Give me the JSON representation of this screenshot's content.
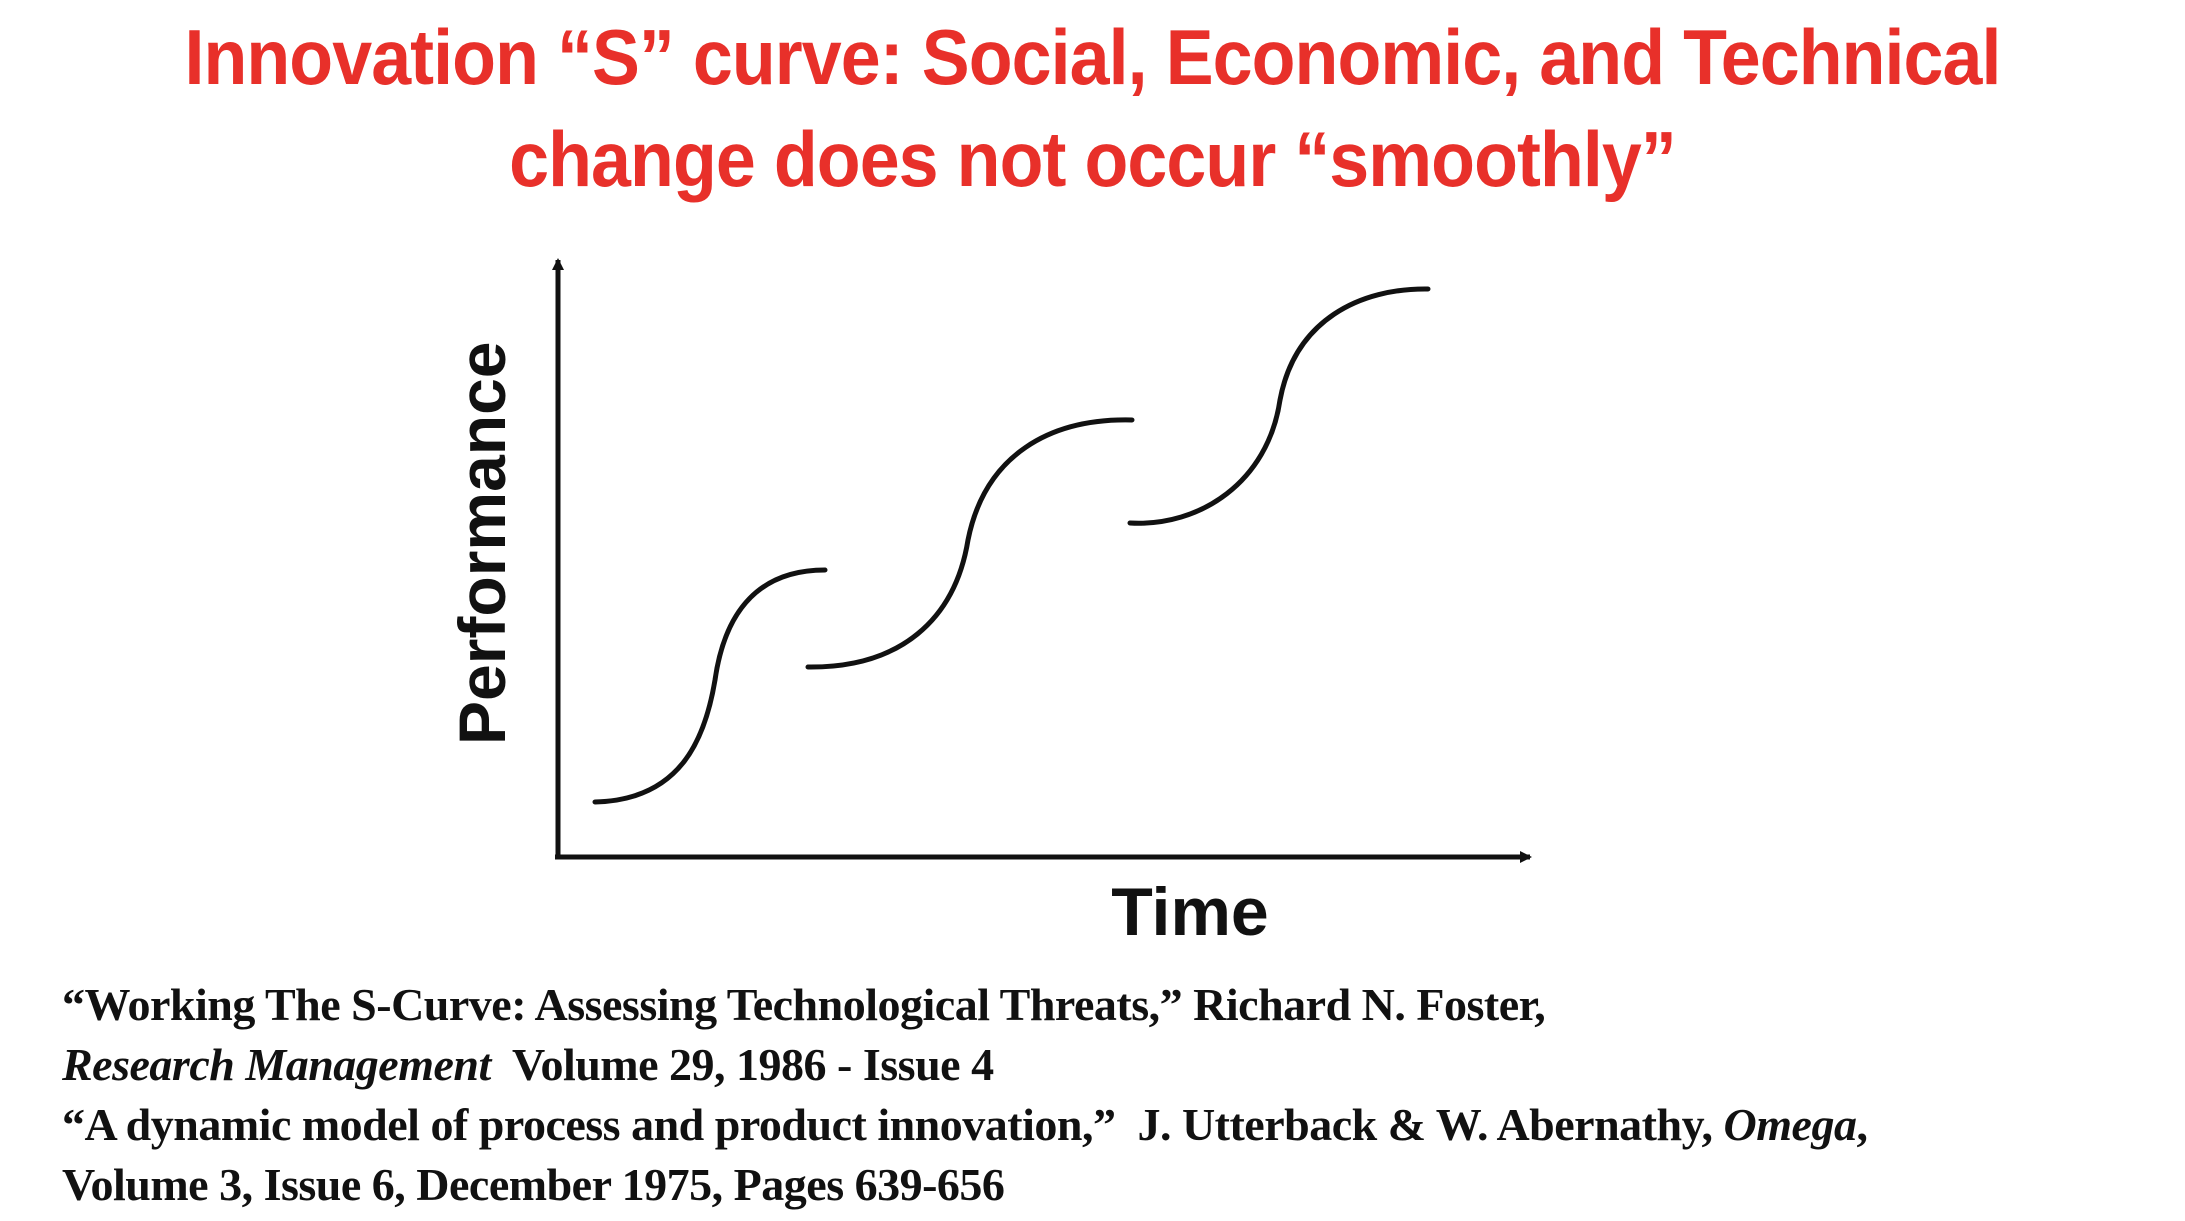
{
  "slide": {
    "title_line1": "Innovation “S” curve:   Social, Economic, and Technical",
    "title_line2": "change does not occur “smoothly”",
    "title_color": "#e8302a"
  },
  "diagram": {
    "y_axis_label": "Performance",
    "x_axis_label": "Time",
    "curves": [
      {
        "name": "s-curve-1"
      },
      {
        "name": "s-curve-2"
      },
      {
        "name": "s-curve-3"
      }
    ]
  },
  "references": {
    "ref1_title": "“Working The S-Curve: Assessing Technological Threats,”",
    "ref1_author": " Richard N. Foster,",
    "ref1_journal": "Research Management",
    "ref1_details": "  Volume 29, 1986 - Issue 4",
    "ref2_title": "“A dynamic model of process and product innovation,”",
    "ref2_author": "  J. Utterback & W. Abernathy, ",
    "ref2_journal": "Omega",
    "ref2_comma": ",",
    "ref2_details": "Volume 3, Issue 6, December 1975, Pages 639-656"
  }
}
